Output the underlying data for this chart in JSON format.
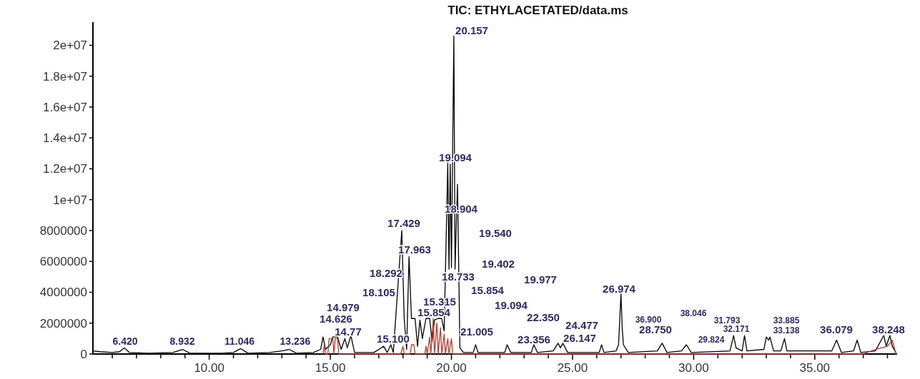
{
  "chart_data": {
    "type": "line",
    "title": "TIC: ETHYLACETATED/data.ms",
    "xlim": [
      5.2,
      38.4
    ],
    "ylim": [
      0,
      21500000.0
    ],
    "xticks": [
      {
        "value": 6,
        "label": null
      },
      {
        "value": 7,
        "label": null
      },
      {
        "value": 8,
        "label": null
      },
      {
        "value": 9,
        "label": null
      },
      {
        "value": 10,
        "label": "10.00"
      },
      {
        "value": 11,
        "label": null
      },
      {
        "value": 12,
        "label": null
      },
      {
        "value": 13,
        "label": null
      },
      {
        "value": 14,
        "label": null
      },
      {
        "value": 15,
        "label": "15.00"
      },
      {
        "value": 16,
        "label": null
      },
      {
        "value": 17,
        "label": null
      },
      {
        "value": 18,
        "label": null
      },
      {
        "value": 19,
        "label": null
      },
      {
        "value": 20,
        "label": "20.00"
      },
      {
        "value": 21,
        "label": null
      },
      {
        "value": 22,
        "label": null
      },
      {
        "value": 23,
        "label": null
      },
      {
        "value": 24,
        "label": null
      },
      {
        "value": 25,
        "label": "25.00"
      },
      {
        "value": 26,
        "label": null
      },
      {
        "value": 27,
        "label": null
      },
      {
        "value": 28,
        "label": null
      },
      {
        "value": 29,
        "label": null
      },
      {
        "value": 30,
        "label": "30.00"
      },
      {
        "value": 31,
        "label": null
      },
      {
        "value": 32,
        "label": null
      },
      {
        "value": 33,
        "label": null
      },
      {
        "value": 34,
        "label": null
      },
      {
        "value": 35,
        "label": "35.00"
      },
      {
        "value": 36,
        "label": null
      },
      {
        "value": 37,
        "label": null
      },
      {
        "value": 38,
        "label": null
      }
    ],
    "yticks": [
      0,
      2000000,
      4000000,
      6000000,
      8000000,
      {
        "value": 10000000.0,
        "label": "1e+07"
      },
      {
        "value": 12000000.0,
        "label": "1.2e+07"
      },
      {
        "value": 14000000.0,
        "label": "1.4e+07"
      },
      {
        "value": 16000000.0,
        "label": "1.6e+07"
      },
      {
        "value": 18000000.0,
        "label": "1.8e+07"
      },
      {
        "value": 20000000.0,
        "label": "2e+07"
      }
    ],
    "grid": false,
    "marker": "none",
    "line_style": "solid",
    "series": [
      {
        "color": "#000000",
        "x": [
          5.2,
          5.5,
          6.0,
          6.3,
          6.5,
          6.7,
          7.5,
          8.5,
          8.9,
          9.2,
          10.5,
          11.0,
          11.3,
          11.6,
          12.5,
          13.0,
          13.3,
          13.6,
          14.3,
          14.6,
          14.7,
          14.8,
          15.0,
          15.1,
          15.3,
          15.45,
          15.6,
          15.7,
          15.85,
          16.0,
          16.8,
          17.2,
          17.35,
          17.5,
          17.6,
          17.95,
          18.05,
          18.15,
          18.25,
          18.35,
          18.5,
          18.6,
          18.7,
          18.8,
          18.95,
          19.1,
          19.2,
          19.3,
          19.45,
          19.6,
          19.7,
          19.85,
          19.9,
          19.95,
          20.0,
          20.1,
          20.15,
          20.25,
          20.35,
          20.5,
          20.9,
          21.0,
          21.1,
          22.2,
          22.3,
          22.45,
          23.3,
          23.4,
          23.55,
          24.2,
          24.4,
          24.5,
          24.6,
          24.8,
          26.1,
          26.2,
          26.3,
          26.8,
          26.9,
          27.0,
          27.05,
          27.1,
          27.3,
          28.5,
          28.7,
          28.9,
          29.5,
          29.7,
          29.9,
          31.5,
          31.65,
          31.75,
          32.0,
          32.1,
          32.2,
          32.9,
          33.0,
          33.1,
          33.15,
          33.3,
          33.6,
          33.75,
          33.85,
          35.7,
          35.9,
          36.1,
          36.6,
          36.75,
          36.9,
          37.5,
          37.85,
          37.95,
          38.1,
          38.2,
          38.35
        ],
        "values": [
          200000.0,
          150000.0,
          100000.0,
          150000.0,
          400000.0,
          100000.0,
          50000.0,
          100000.0,
          300000.0,
          50000.0,
          50000.0,
          100000.0,
          350000.0,
          50000.0,
          100000.0,
          200000.0,
          300000.0,
          50000.0,
          100000.0,
          300000.0,
          1100000.0,
          300000.0,
          600000.0,
          1100000.0,
          1100000.0,
          300000.0,
          1000000.0,
          400000.0,
          1200000.0,
          100000.0,
          100000.0,
          500000.0,
          100000.0,
          600000.0,
          100000.0,
          8000000.0,
          2300000.0,
          300000.0,
          6300000.0,
          2300000.0,
          2300000.0,
          500000.0,
          2200000.0,
          1000000.0,
          2300000.0,
          2300000.0,
          800000.0,
          2200000.0,
          2300000.0,
          2300000.0,
          1500000.0,
          12400000.0,
          5500000.0,
          12300000.0,
          5600000.0,
          20600000.0,
          5500000.0,
          11000000.0,
          400000.0,
          100000.0,
          100000.0,
          600000.0,
          100000.0,
          100000.0,
          600000.0,
          100000.0,
          100000.0,
          600000.0,
          100000.0,
          200000.0,
          700000.0,
          400000.0,
          700000.0,
          100000.0,
          100000.0,
          600000.0,
          100000.0,
          200000.0,
          600000.0,
          3900000.0,
          1700000.0,
          600000.0,
          100000.0,
          200000.0,
          700000.0,
          100000.0,
          200000.0,
          600000.0,
          100000.0,
          200000.0,
          1200000.0,
          400000.0,
          200000.0,
          1200000.0,
          200000.0,
          300000.0,
          1100000.0,
          900000.0,
          1100000.0,
          200000.0,
          200000.0,
          1000000.0,
          200000.0,
          200000.0,
          900000.0,
          100000.0,
          200000.0,
          900000.0,
          100000.0,
          200000.0,
          1200000.0,
          500000.0,
          1200000.0,
          500000.0,
          100000.0
        ]
      },
      {
        "color": "#c0392b",
        "x": [
          14.7,
          14.75,
          14.8,
          14.9,
          14.95,
          15.1,
          15.15,
          15.2,
          15.3,
          15.35,
          17.9,
          18.0,
          18.05,
          18.3,
          18.35,
          18.45,
          18.5,
          18.9,
          18.95,
          19.0,
          19.1,
          19.15,
          19.25,
          19.3,
          19.4,
          19.45,
          19.55,
          19.6,
          19.7,
          19.75,
          19.85,
          19.9,
          20.0,
          20.05,
          37.0,
          37.5,
          38.0,
          38.2,
          38.35
        ],
        "values": [
          0,
          600000.0,
          0,
          0,
          1000000.0,
          1000000.0,
          0,
          1000000.0,
          1000000.0,
          0,
          0,
          500000.0,
          0,
          0,
          600000.0,
          600000.0,
          0,
          0,
          500000.0,
          0,
          1100000.0,
          0,
          2300000.0,
          0,
          2000000.0,
          0,
          1700000.0,
          0,
          1300000.0,
          0,
          1000000.0,
          0,
          1000000.0,
          0,
          0,
          300000.0,
          500000.0,
          900000.0,
          0
        ]
      }
    ],
    "annotations": [
      "20.157",
      "19.094",
      "18.904",
      "17.429",
      "19.540",
      "17.963",
      "19.402",
      "18.292",
      "18.733",
      "19.977",
      "18.105",
      "26.974",
      "15.854",
      "14.979",
      "15.315",
      "19.094",
      "14.626",
      "15.854",
      "22.350",
      "14.77",
      "21.005",
      "15.100",
      "23.356",
      "24.477",
      "26.147",
      "6.420",
      "8.932",
      "11.046",
      "13.236",
      "36.900",
      "38.046",
      "28.750",
      "31.793",
      "32.171",
      "29.824",
      "33.885",
      "33.138",
      "36.079",
      "38.248"
    ]
  }
}
